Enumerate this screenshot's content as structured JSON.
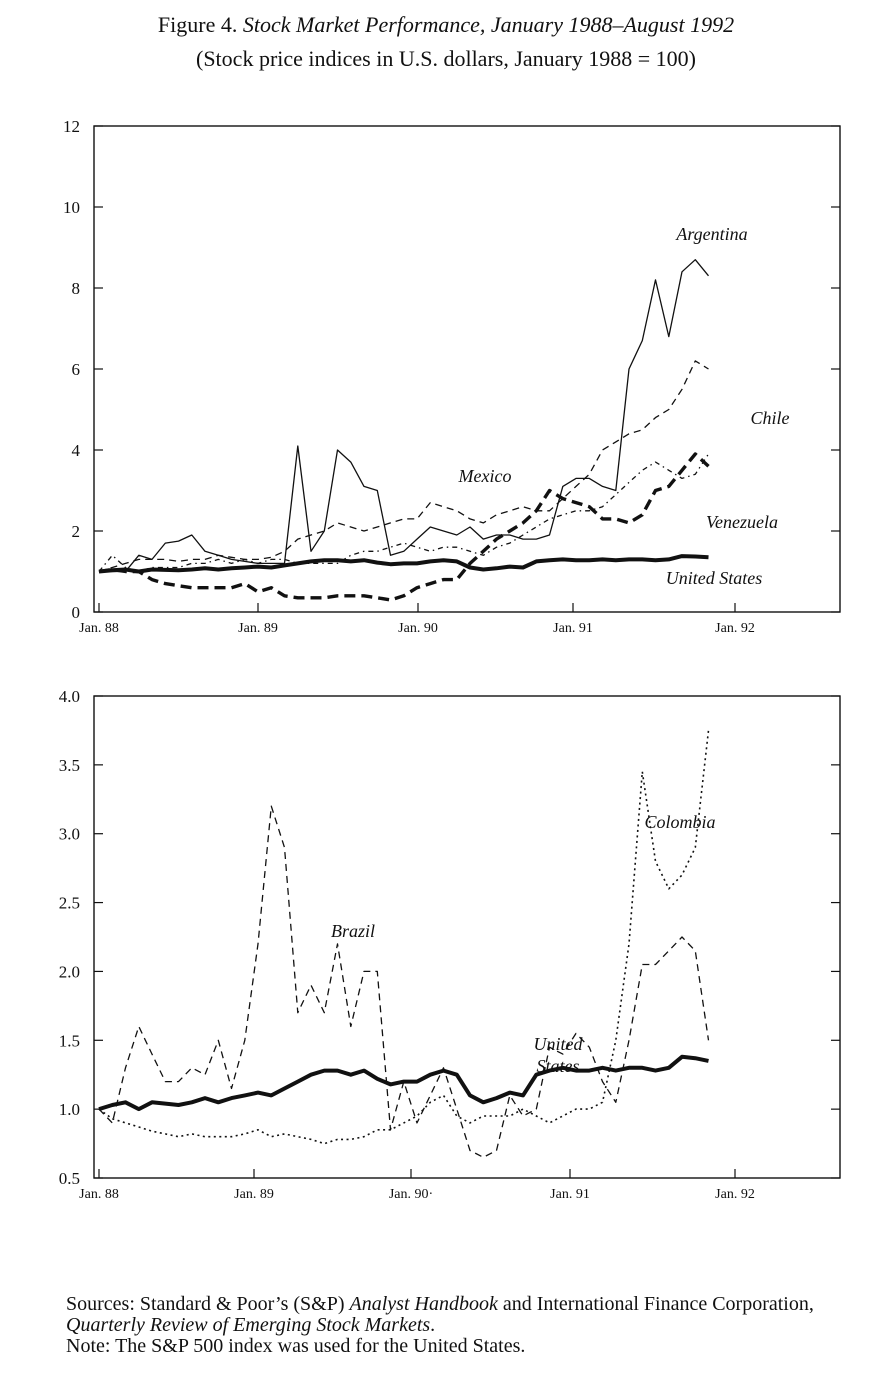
{
  "figure": {
    "title_prefix": "Figure 4.",
    "title_main": "Stock Market Performance, January 1988–August 1992",
    "subtitle": "(Stock price indices in U.S. dollars, January 1988 = 100)"
  },
  "footer": {
    "sources_prefix": "Sources: Standard & Poor’s (S&P) ",
    "sources_book": "Analyst Handbook",
    "sources_mid": " and International Finance Corporation, ",
    "sources_review": "Quarterly Review of Emerging Stock Markets",
    "sources_end": ".",
    "note": "Note: The S&P 500 index was used for the United States."
  },
  "chart_data": [
    {
      "type": "line",
      "title": "",
      "xlabel": "",
      "ylabel": "",
      "x_ticks": [
        "Jan. 88",
        "Jan. 89",
        "Jan. 90",
        "Jan. 91",
        "Jan. 92"
      ],
      "y_ticks": [
        "0",
        "2",
        "4",
        "6",
        "8",
        "10",
        "12"
      ],
      "ylim": [
        0,
        12
      ],
      "x_range_months": [
        0,
        46
      ],
      "grid": false,
      "legend": "inline labels",
      "series": [
        {
          "name": "Argentina",
          "style": "thin-solid",
          "x": [
            0,
            1,
            2,
            3,
            4,
            5,
            6,
            7,
            8,
            9,
            10,
            11,
            12,
            13,
            14,
            15,
            16,
            17,
            18,
            19,
            20,
            21,
            22,
            23,
            24,
            25,
            26,
            27,
            28,
            29,
            30,
            31,
            32,
            33,
            34,
            35,
            36,
            37,
            38,
            39,
            40,
            41,
            42,
            43,
            44,
            45,
            46
          ],
          "values": [
            1.0,
            1.0,
            1.0,
            1.4,
            1.3,
            1.7,
            1.75,
            1.9,
            1.5,
            1.4,
            1.3,
            1.25,
            1.2,
            1.2,
            1.2,
            4.1,
            1.5,
            2.0,
            4.0,
            3.7,
            3.1,
            3.0,
            1.4,
            1.5,
            1.8,
            2.1,
            2.0,
            1.9,
            2.1,
            1.8,
            1.9,
            1.9,
            1.8,
            1.8,
            1.9,
            3.1,
            3.3,
            3.3,
            3.1,
            3.0,
            6.0,
            6.7,
            8.2,
            6.8,
            8.4,
            8.7,
            8.3
          ]
        },
        {
          "name": "Mexico",
          "style": "dashed",
          "x": [
            0,
            1,
            2,
            3,
            4,
            5,
            6,
            7,
            8,
            9,
            10,
            11,
            12,
            13,
            14,
            15,
            16,
            17,
            18,
            19,
            20,
            21,
            22,
            23,
            24,
            25,
            26,
            27,
            28,
            29,
            30,
            31,
            32,
            33,
            34,
            35,
            36,
            37,
            38,
            39,
            40,
            41,
            42,
            43,
            44,
            45,
            46
          ],
          "values": [
            1.0,
            1.1,
            1.2,
            1.3,
            1.3,
            1.3,
            1.25,
            1.3,
            1.3,
            1.4,
            1.35,
            1.3,
            1.3,
            1.35,
            1.5,
            1.8,
            1.9,
            2.0,
            2.2,
            2.1,
            2.0,
            2.1,
            2.2,
            2.3,
            2.3,
            2.7,
            2.6,
            2.5,
            2.3,
            2.2,
            2.4,
            2.5,
            2.6,
            2.5,
            2.5,
            2.8,
            3.1,
            3.4,
            4.0,
            4.2,
            4.4,
            4.5,
            4.8,
            5.0,
            5.5,
            6.2,
            6.0
          ]
        },
        {
          "name": "Chile",
          "style": "dash-dot",
          "x": [
            0,
            1,
            2,
            3,
            4,
            5,
            6,
            7,
            8,
            9,
            10,
            11,
            12,
            13,
            14,
            15,
            16,
            17,
            18,
            19,
            20,
            21,
            22,
            23,
            24,
            25,
            26,
            27,
            28,
            29,
            30,
            31,
            32,
            33,
            34,
            35,
            36,
            37,
            38,
            39,
            40,
            41,
            42,
            43,
            44,
            45,
            46
          ],
          "values": [
            1.0,
            1.4,
            1.1,
            1.0,
            1.1,
            1.1,
            1.1,
            1.2,
            1.2,
            1.3,
            1.2,
            1.3,
            1.2,
            1.3,
            1.3,
            1.2,
            1.2,
            1.2,
            1.2,
            1.4,
            1.5,
            1.5,
            1.6,
            1.7,
            1.6,
            1.5,
            1.6,
            1.6,
            1.5,
            1.4,
            1.6,
            1.7,
            1.9,
            2.1,
            2.3,
            2.4,
            2.5,
            2.5,
            2.6,
            2.9,
            3.2,
            3.5,
            3.7,
            3.5,
            3.3,
            3.4,
            3.9
          ]
        },
        {
          "name": "Venezuela",
          "style": "bold-dashed",
          "x": [
            0,
            1,
            2,
            3,
            4,
            5,
            6,
            7,
            8,
            9,
            10,
            11,
            12,
            13,
            14,
            15,
            16,
            17,
            18,
            19,
            20,
            21,
            22,
            23,
            24,
            25,
            26,
            27,
            28,
            29,
            30,
            31,
            32,
            33,
            34,
            35,
            36,
            37,
            38,
            39,
            40,
            41,
            42,
            43,
            44,
            45,
            46
          ],
          "values": [
            1.0,
            1.05,
            1.0,
            1.0,
            0.8,
            0.7,
            0.65,
            0.6,
            0.6,
            0.6,
            0.6,
            0.7,
            0.5,
            0.6,
            0.4,
            0.35,
            0.35,
            0.35,
            0.4,
            0.4,
            0.4,
            0.35,
            0.3,
            0.4,
            0.6,
            0.7,
            0.8,
            0.8,
            1.2,
            1.5,
            1.8,
            2.0,
            2.2,
            2.5,
            3.0,
            2.8,
            2.7,
            2.6,
            2.3,
            2.3,
            2.2,
            2.4,
            3.0,
            3.1,
            3.5,
            3.9,
            3.6
          ]
        },
        {
          "name": "United States",
          "style": "bold-solid",
          "x": [
            0,
            1,
            2,
            3,
            4,
            5,
            6,
            7,
            8,
            9,
            10,
            11,
            12,
            13,
            14,
            15,
            16,
            17,
            18,
            19,
            20,
            21,
            22,
            23,
            24,
            25,
            26,
            27,
            28,
            29,
            30,
            31,
            32,
            33,
            34,
            35,
            36,
            37,
            38,
            39,
            40,
            41,
            42,
            43,
            44,
            45,
            46
          ],
          "values": [
            1.0,
            1.03,
            1.05,
            1.0,
            1.05,
            1.04,
            1.03,
            1.05,
            1.08,
            1.05,
            1.08,
            1.1,
            1.12,
            1.1,
            1.15,
            1.2,
            1.25,
            1.28,
            1.28,
            1.25,
            1.28,
            1.22,
            1.18,
            1.2,
            1.2,
            1.25,
            1.28,
            1.25,
            1.1,
            1.05,
            1.08,
            1.12,
            1.1,
            1.25,
            1.28,
            1.3,
            1.28,
            1.28,
            1.3,
            1.28,
            1.3,
            1.3,
            1.28,
            1.3,
            1.38,
            1.37,
            1.35
          ]
        }
      ]
    },
    {
      "type": "line",
      "title": "",
      "xlabel": "",
      "ylabel": "",
      "x_ticks": [
        "Jan. 88",
        "Jan. 89",
        "Jan. 90·",
        "Jan. 91",
        "Jan. 92"
      ],
      "y_ticks": [
        "0.5",
        "1.0",
        "1.5",
        "2.0",
        "2.5",
        "3.0",
        "3.5",
        "4.0"
      ],
      "ylim": [
        0.5,
        4.0
      ],
      "x_range_months": [
        0,
        46
      ],
      "grid": false,
      "legend": "inline labels",
      "series": [
        {
          "name": "Brazil",
          "style": "dashed",
          "x": [
            0,
            1,
            2,
            3,
            4,
            5,
            6,
            7,
            8,
            9,
            10,
            11,
            12,
            13,
            14,
            15,
            16,
            17,
            18,
            19,
            20,
            21,
            22,
            23,
            24,
            25,
            26,
            27,
            28,
            29,
            30,
            31,
            32,
            33,
            34,
            35,
            36,
            37,
            38,
            39,
            40,
            41,
            42,
            43,
            44,
            45,
            46
          ],
          "values": [
            1.0,
            0.9,
            1.3,
            1.6,
            1.4,
            1.2,
            1.2,
            1.3,
            1.25,
            1.5,
            1.15,
            1.5,
            2.2,
            3.2,
            2.9,
            1.7,
            1.9,
            1.7,
            2.2,
            1.6,
            2.0,
            2.0,
            0.85,
            1.2,
            0.9,
            1.1,
            1.3,
            1.0,
            0.7,
            0.65,
            0.7,
            1.1,
            0.95,
            1.0,
            1.45,
            1.4,
            1.55,
            1.45,
            1.2,
            1.05,
            1.5,
            2.05,
            2.05,
            2.15,
            2.25,
            2.15,
            1.5
          ]
        },
        {
          "name": "Colombia",
          "style": "dotted",
          "x": [
            0,
            1,
            2,
            3,
            4,
            5,
            6,
            7,
            8,
            9,
            10,
            11,
            12,
            13,
            14,
            15,
            16,
            17,
            18,
            19,
            20,
            21,
            22,
            23,
            24,
            25,
            26,
            27,
            28,
            29,
            30,
            31,
            32,
            33,
            34,
            35,
            36,
            37,
            38,
            39,
            40,
            41,
            42,
            43,
            44,
            45,
            46
          ],
          "values": [
            1.0,
            0.93,
            0.9,
            0.87,
            0.84,
            0.82,
            0.8,
            0.82,
            0.8,
            0.8,
            0.8,
            0.82,
            0.85,
            0.8,
            0.82,
            0.8,
            0.78,
            0.75,
            0.78,
            0.78,
            0.8,
            0.85,
            0.85,
            0.9,
            0.95,
            1.05,
            1.1,
            0.95,
            0.9,
            0.95,
            0.95,
            0.95,
            1.0,
            0.95,
            0.9,
            0.95,
            1.0,
            1.0,
            1.05,
            1.5,
            2.2,
            3.45,
            2.8,
            2.6,
            2.7,
            2.9,
            3.75
          ]
        },
        {
          "name": "United States",
          "style": "bold-solid",
          "x": [
            0,
            1,
            2,
            3,
            4,
            5,
            6,
            7,
            8,
            9,
            10,
            11,
            12,
            13,
            14,
            15,
            16,
            17,
            18,
            19,
            20,
            21,
            22,
            23,
            24,
            25,
            26,
            27,
            28,
            29,
            30,
            31,
            32,
            33,
            34,
            35,
            36,
            37,
            38,
            39,
            40,
            41,
            42,
            43,
            44,
            45,
            46
          ],
          "values": [
            1.0,
            1.03,
            1.05,
            1.0,
            1.05,
            1.04,
            1.03,
            1.05,
            1.08,
            1.05,
            1.08,
            1.1,
            1.12,
            1.1,
            1.15,
            1.2,
            1.25,
            1.28,
            1.28,
            1.25,
            1.28,
            1.22,
            1.18,
            1.2,
            1.2,
            1.25,
            1.28,
            1.25,
            1.1,
            1.05,
            1.08,
            1.12,
            1.1,
            1.25,
            1.28,
            1.3,
            1.28,
            1.28,
            1.3,
            1.28,
            1.3,
            1.3,
            1.28,
            1.3,
            1.38,
            1.37,
            1.35
          ]
        }
      ]
    }
  ]
}
